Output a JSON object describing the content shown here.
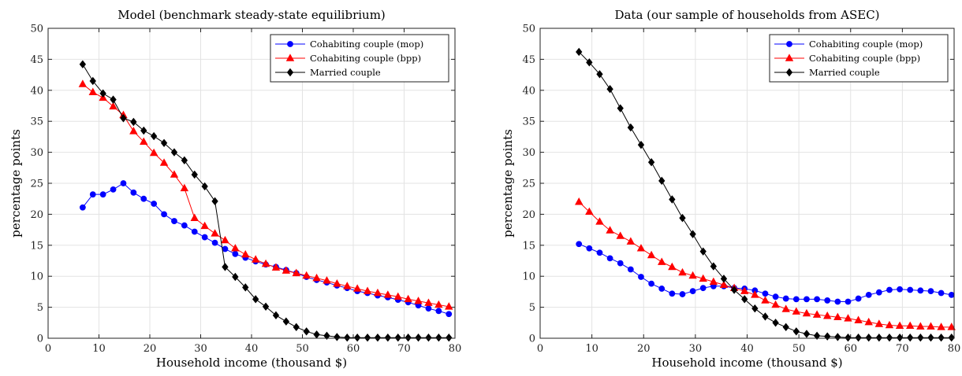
{
  "chart_data": [
    {
      "type": "line",
      "title": "Model (benchmark steady-state equilibrium)",
      "xlabel": "Household income (thousand $)",
      "ylabel": "percentage points",
      "xlim": [
        0,
        80
      ],
      "ylim": [
        0,
        50
      ],
      "xticks": [
        0,
        10,
        20,
        30,
        40,
        50,
        60,
        70,
        80
      ],
      "yticks": [
        0,
        5,
        10,
        15,
        20,
        25,
        30,
        35,
        40,
        45,
        50
      ],
      "grid": true,
      "legend_position": "top-right",
      "series": [
        {
          "name": "Cohabiting couple (mop)",
          "color": "#0000ff",
          "marker": "circle",
          "x": [
            6.8,
            8.8,
            10.8,
            12.8,
            14.8,
            16.8,
            18.8,
            20.8,
            22.8,
            24.8,
            26.8,
            28.8,
            30.8,
            32.8,
            34.8,
            36.8,
            38.8,
            40.8,
            42.8,
            44.8,
            46.8,
            48.8,
            50.8,
            52.8,
            54.8,
            56.8,
            58.8,
            60.8,
            62.8,
            64.8,
            66.8,
            68.8,
            70.8,
            72.8,
            74.8,
            76.8,
            78.8
          ],
          "y": [
            21.1,
            23.2,
            23.2,
            24.0,
            25.0,
            23.5,
            22.5,
            21.7,
            20.0,
            18.9,
            18.2,
            17.2,
            16.3,
            15.4,
            14.4,
            13.6,
            13.0,
            12.4,
            11.9,
            11.5,
            11.0,
            10.5,
            9.9,
            9.4,
            9.0,
            8.5,
            8.1,
            7.6,
            7.3,
            6.9,
            6.6,
            6.2,
            5.8,
            5.3,
            4.8,
            4.4,
            3.9
          ]
        },
        {
          "name": "Cohabiting couple (bpp)",
          "color": "#ff0000",
          "marker": "triangle",
          "x": [
            6.8,
            8.8,
            10.8,
            12.8,
            14.8,
            16.8,
            18.8,
            20.8,
            22.8,
            24.8,
            26.8,
            28.8,
            30.8,
            32.8,
            34.8,
            36.8,
            38.8,
            40.8,
            42.8,
            44.8,
            46.8,
            48.8,
            50.8,
            52.8,
            54.8,
            56.8,
            58.8,
            60.8,
            62.8,
            64.8,
            66.8,
            68.8,
            70.8,
            72.8,
            74.8,
            76.8,
            78.8
          ],
          "y": [
            41.0,
            39.7,
            38.8,
            37.4,
            36.0,
            33.4,
            31.7,
            29.9,
            28.3,
            26.4,
            24.2,
            19.4,
            18.1,
            16.9,
            15.8,
            14.5,
            13.5,
            12.7,
            12.0,
            11.4,
            10.9,
            10.5,
            10.1,
            9.7,
            9.3,
            8.8,
            8.4,
            8.0,
            7.6,
            7.3,
            7.0,
            6.7,
            6.3,
            6.0,
            5.7,
            5.4,
            5.1
          ]
        },
        {
          "name": "Married couple",
          "color": "#000000",
          "marker": "diamond",
          "x": [
            6.8,
            8.8,
            10.8,
            12.8,
            14.8,
            16.8,
            18.8,
            20.8,
            22.8,
            24.8,
            26.8,
            28.8,
            30.8,
            32.8,
            34.8,
            36.8,
            38.8,
            40.8,
            42.8,
            44.8,
            46.8,
            48.8,
            50.8,
            52.8,
            54.8,
            56.8,
            58.8,
            60.8,
            62.8,
            64.8,
            66.8,
            68.8,
            70.8,
            72.8,
            74.8,
            76.8,
            78.8
          ],
          "y": [
            44.2,
            41.5,
            39.5,
            38.5,
            35.5,
            34.9,
            33.5,
            32.6,
            31.5,
            30.0,
            28.7,
            26.4,
            24.5,
            22.1,
            11.5,
            9.9,
            8.2,
            6.3,
            5.1,
            3.7,
            2.7,
            1.8,
            1.1,
            0.6,
            0.4,
            0.2,
            0.1,
            0.1,
            0.1,
            0.1,
            0.1,
            0.1,
            0.1,
            0.1,
            0.1,
            0.1,
            0.1
          ]
        }
      ]
    },
    {
      "type": "line",
      "title": "Data (our sample of households from ASEC)",
      "xlabel": "Household income (thousand $)",
      "ylabel": "percentage points",
      "xlim": [
        0,
        80
      ],
      "ylim": [
        0,
        50
      ],
      "xticks": [
        0,
        10,
        20,
        30,
        40,
        50,
        60,
        70,
        80
      ],
      "yticks": [
        0,
        5,
        10,
        15,
        20,
        25,
        30,
        35,
        40,
        45,
        50
      ],
      "grid": true,
      "legend_position": "top-right",
      "series": [
        {
          "name": "Cohabiting couple (mop)",
          "color": "#0000ff",
          "marker": "circle",
          "x": [
            7.5,
            9.5,
            11.5,
            13.5,
            15.5,
            17.5,
            19.5,
            21.5,
            23.5,
            25.5,
            27.5,
            29.5,
            31.5,
            33.5,
            35.5,
            37.5,
            39.5,
            41.5,
            43.5,
            45.5,
            47.5,
            49.5,
            51.5,
            53.5,
            55.5,
            57.5,
            59.5,
            61.5,
            63.5,
            65.5,
            67.5,
            69.5,
            71.5,
            73.5,
            75.5,
            77.5,
            79.5
          ],
          "y": [
            15.2,
            14.5,
            13.8,
            12.9,
            12.1,
            11.1,
            9.9,
            8.8,
            8.0,
            7.2,
            7.1,
            7.6,
            8.1,
            8.4,
            8.4,
            8.1,
            8.0,
            7.7,
            7.2,
            6.7,
            6.4,
            6.3,
            6.3,
            6.3,
            6.1,
            5.9,
            5.9,
            6.4,
            7.0,
            7.4,
            7.8,
            7.9,
            7.8,
            7.7,
            7.6,
            7.3,
            7.0
          ]
        },
        {
          "name": "Cohabiting couple (bpp)",
          "color": "#ff0000",
          "marker": "triangle",
          "x": [
            7.5,
            9.5,
            11.5,
            13.5,
            15.5,
            17.5,
            19.5,
            21.5,
            23.5,
            25.5,
            27.5,
            29.5,
            31.5,
            33.5,
            35.5,
            37.5,
            39.5,
            41.5,
            43.5,
            45.5,
            47.5,
            49.5,
            51.5,
            53.5,
            55.5,
            57.5,
            59.5,
            61.5,
            63.5,
            65.5,
            67.5,
            69.5,
            71.5,
            73.5,
            75.5,
            77.5,
            79.5
          ],
          "y": [
            22.0,
            20.4,
            18.8,
            17.4,
            16.5,
            15.6,
            14.5,
            13.4,
            12.3,
            11.5,
            10.6,
            10.1,
            9.6,
            9.1,
            8.6,
            8.1,
            7.6,
            7.0,
            6.1,
            5.4,
            4.7,
            4.3,
            4.0,
            3.8,
            3.6,
            3.4,
            3.2,
            2.9,
            2.6,
            2.3,
            2.1,
            2.0,
            2.0,
            1.9,
            1.9,
            1.8,
            1.8
          ]
        },
        {
          "name": "Married couple",
          "color": "#000000",
          "marker": "diamond",
          "x": [
            7.5,
            9.5,
            11.5,
            13.5,
            15.5,
            17.5,
            19.5,
            21.5,
            23.5,
            25.5,
            27.5,
            29.5,
            31.5,
            33.5,
            35.5,
            37.5,
            39.5,
            41.5,
            43.5,
            45.5,
            47.5,
            49.5,
            51.5,
            53.5,
            55.5,
            57.5,
            59.5,
            61.5,
            63.5,
            65.5,
            67.5,
            69.5,
            71.5,
            73.5,
            75.5,
            77.5,
            79.5
          ],
          "y": [
            46.2,
            44.5,
            42.6,
            40.2,
            37.1,
            34.0,
            31.2,
            28.4,
            25.4,
            22.4,
            19.4,
            16.8,
            14.0,
            11.6,
            9.6,
            7.8,
            6.3,
            4.8,
            3.5,
            2.5,
            1.8,
            1.1,
            0.7,
            0.4,
            0.3,
            0.2,
            0.1,
            0.1,
            0.1,
            0.1,
            0.1,
            0.1,
            0.1,
            0.1,
            0.1,
            0.1,
            0.1
          ]
        }
      ]
    }
  ]
}
